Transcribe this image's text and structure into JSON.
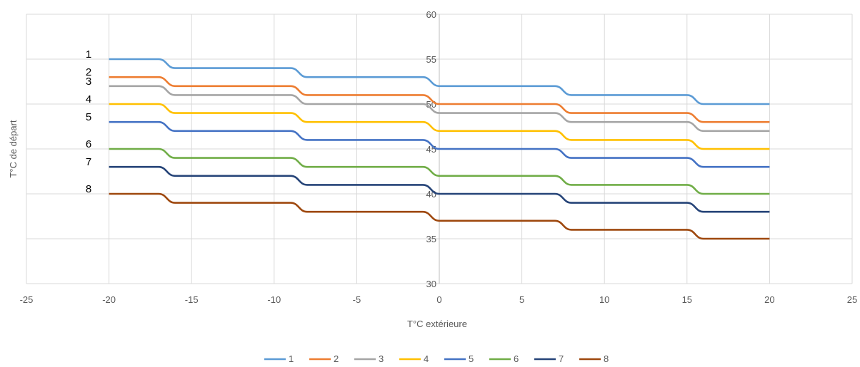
{
  "chart_data": {
    "type": "line",
    "title": "",
    "xlabel": "T°C extérieure",
    "ylabel": "T°C de départ",
    "xlim": [
      -25,
      25
    ],
    "ylim": [
      30,
      60
    ],
    "x_ticks": [
      -25,
      -20,
      -15,
      -10,
      -5,
      0,
      5,
      10,
      15,
      20,
      25
    ],
    "y_ticks": [
      30,
      35,
      40,
      45,
      50,
      55,
      60
    ],
    "grid": true,
    "legend_position": "bottom",
    "x": [
      -20,
      -17,
      -16,
      -9,
      -8,
      -1,
      0,
      7,
      8,
      15,
      16,
      20
    ],
    "series": [
      {
        "name": "1",
        "color": "#5B9BD5",
        "values": [
          55,
          55,
          54,
          54,
          53,
          53,
          52,
          52,
          51,
          51,
          50,
          50
        ]
      },
      {
        "name": "2",
        "color": "#ED7D31",
        "values": [
          53,
          53,
          52,
          52,
          51,
          51,
          50,
          50,
          49,
          49,
          48,
          48
        ]
      },
      {
        "name": "3",
        "color": "#A5A5A5",
        "values": [
          52,
          52,
          51,
          51,
          50,
          50,
          49,
          49,
          48,
          48,
          47,
          47
        ]
      },
      {
        "name": "4",
        "color": "#FFC000",
        "values": [
          50,
          50,
          49,
          49,
          48,
          48,
          47,
          47,
          46,
          46,
          45,
          45
        ]
      },
      {
        "name": "5",
        "color": "#4472C4",
        "values": [
          48,
          48,
          47,
          47,
          46,
          46,
          45,
          45,
          44,
          44,
          43,
          43
        ]
      },
      {
        "name": "6",
        "color": "#70AD47",
        "values": [
          45,
          45,
          44,
          44,
          43,
          43,
          42,
          42,
          41,
          41,
          40,
          40
        ]
      },
      {
        "name": "7",
        "color": "#264478",
        "values": [
          43,
          43,
          42,
          42,
          41,
          41,
          40,
          40,
          39,
          39,
          38,
          38
        ]
      },
      {
        "name": "8",
        "color": "#9E480E",
        "values": [
          40,
          40,
          39,
          39,
          38,
          38,
          37,
          37,
          36,
          36,
          35,
          35
        ]
      }
    ],
    "side_labels": [
      "1",
      "2",
      "3",
      "4",
      "5",
      "6",
      "7",
      "8"
    ]
  }
}
